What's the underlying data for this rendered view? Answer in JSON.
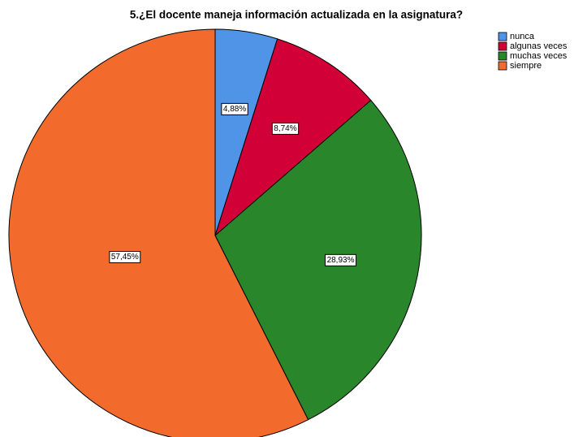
{
  "chart_data": {
    "type": "pie",
    "title": "5.¿El docente maneja información actualizada en la asignatura?",
    "categories": [
      "nunca",
      "algunas veces",
      "muchas veces",
      "siempre"
    ],
    "values": [
      4.88,
      8.74,
      28.93,
      57.45
    ],
    "value_labels": [
      "4,88%",
      "8,74%",
      "28,93%",
      "57,45%"
    ],
    "colors": [
      "#4f94e6",
      "#d10037",
      "#2a862a",
      "#f26a2c"
    ],
    "legend": "top-right"
  }
}
